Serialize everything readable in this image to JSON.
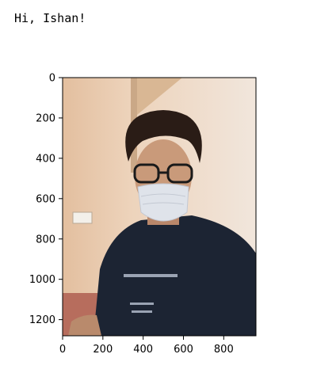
{
  "cell_output": {
    "stdout": "Hi, Ishan!"
  },
  "figure": {
    "image_content": "photo-of-person-wearing-mask",
    "xlim": [
      0,
      960
    ],
    "ylim": [
      1280,
      0
    ],
    "x_ticks": [
      0,
      200,
      400,
      600,
      800
    ],
    "y_ticks": [
      0,
      200,
      400,
      600,
      800,
      1000,
      1200
    ],
    "colors": {
      "wall": "#e8c9ad",
      "shirt": "#1c2433",
      "skin": "#c99a7a",
      "hair": "#2a1c16",
      "mask": "#dfe3ea"
    }
  }
}
